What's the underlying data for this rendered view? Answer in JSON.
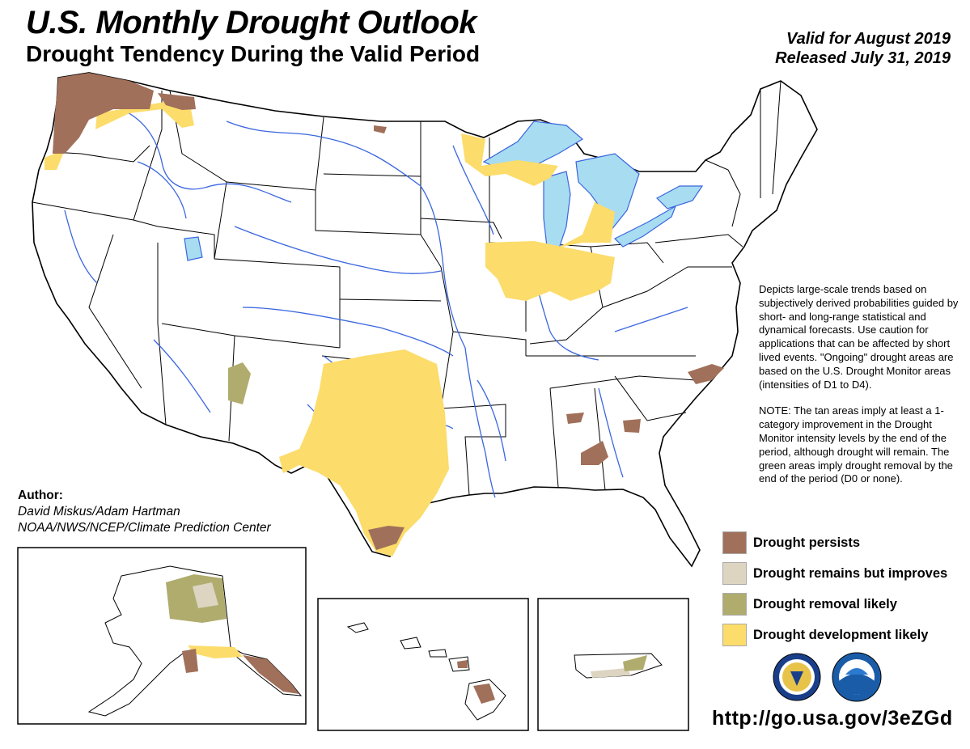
{
  "header": {
    "title": "U.S. Monthly Drought Outlook",
    "subtitle": "Drought Tendency During the Valid Period",
    "valid_for": "Valid for August 2019",
    "released": "Released July 31, 2019"
  },
  "description": {
    "paragraph1": "Depicts large-scale trends based on subjectively derived probabilities guided by short- and long-range statistical and dynamical forecasts. Use caution for applications that can be affected by short lived events. \"Ongoing\" drought areas are based on the U.S. Drought Monitor areas (intensities of D1 to D4).",
    "paragraph2": "NOTE: The tan areas imply at least a 1-category improvement in the Drought Monitor intensity levels by the end of the period, although drought will remain. The green areas imply drought removal by the end of the period (D0 or none)."
  },
  "author": {
    "heading": "Author:",
    "names": "David Miskus/Adam Hartman",
    "org": "NOAA/NWS/NCEP/Climate Prediction Center"
  },
  "legend": [
    {
      "label": "Drought persists",
      "color": "#a0705a"
    },
    {
      "label": "Drought remains but improves",
      "color": "#ddd4c2"
    },
    {
      "label": "Drought removal likely",
      "color": "#b0ac6e"
    },
    {
      "label": "Drought development likely",
      "color": "#fcdc6a"
    }
  ],
  "colors": {
    "persists": "#a0705a",
    "improves": "#ddd4c2",
    "removal": "#b0ac6e",
    "development": "#fcdc6a",
    "water": "#a8dcf0",
    "river": "#3a66e0",
    "border": "#000000"
  },
  "map_regions": {
    "conus": "Contiguous United States",
    "alaska": "Alaska",
    "hawaii": "Hawaii",
    "puerto_rico": "Puerto Rico"
  },
  "logos": [
    "noaa-nws-seal-icon",
    "noaa-logo-icon"
  ],
  "url": "http://go.usa.gov/3eZGd"
}
